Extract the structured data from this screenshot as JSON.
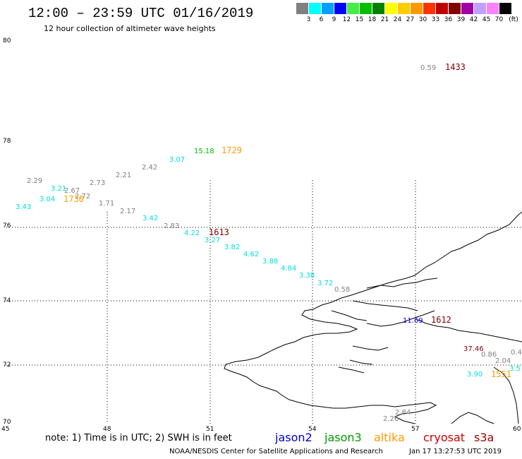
{
  "header": {
    "title": "12:00 – 23:59 UTC 01/16/2019",
    "subtitle": "12 hour collection of altimeter wave heights"
  },
  "legend": {
    "unit_label": "(ft)",
    "bins": [
      {
        "label": "3",
        "color": "#808080"
      },
      {
        "label": "6",
        "color": "#00ffff"
      },
      {
        "label": "9",
        "color": "#00a0ff"
      },
      {
        "label": "12",
        "color": "#0000ff"
      },
      {
        "label": "15",
        "color": "#44ee44"
      },
      {
        "label": "18",
        "color": "#00c000"
      },
      {
        "label": "21",
        "color": "#008000"
      },
      {
        "label": "24",
        "color": "#ffff00"
      },
      {
        "label": "27",
        "color": "#ffcc00"
      },
      {
        "label": "30",
        "color": "#ff9900"
      },
      {
        "label": "33",
        "color": "#ff3300"
      },
      {
        "label": "36",
        "color": "#c00000"
      },
      {
        "label": "39",
        "color": "#800000"
      },
      {
        "label": "42",
        "color": "#a000a0"
      },
      {
        "label": "45",
        "color": "#c0a0ff"
      },
      {
        "label": "70",
        "color": "#ff80ff"
      },
      {
        "label": "",
        "color": "#000000"
      }
    ]
  },
  "axes": {
    "y_ticks": [
      "80",
      "78",
      "76",
      "74",
      "72",
      "70"
    ],
    "x_ticks": [
      "45",
      "48",
      "51",
      "54",
      "57",
      "60"
    ]
  },
  "observations": [
    {
      "text": "0.59",
      "color": "#808080"
    },
    {
      "text": "1433",
      "color": "#800000"
    },
    {
      "text": "15.18",
      "color": "#00c000"
    },
    {
      "text": "1729",
      "color": "#ff9900"
    },
    {
      "text": "3.07",
      "color": "#00dddd"
    },
    {
      "text": "2.42",
      "color": "#808080"
    },
    {
      "text": "2.21",
      "color": "#808080"
    },
    {
      "text": "2.73",
      "color": "#808080"
    },
    {
      "text": "2.29",
      "color": "#808080"
    },
    {
      "text": "3.21",
      "color": "#00dddd"
    },
    {
      "text": "2.67",
      "color": "#808080"
    },
    {
      "text": "2.72",
      "color": "#808080"
    },
    {
      "text": "3.04",
      "color": "#00dddd"
    },
    {
      "text": "1730",
      "color": "#ff9900"
    },
    {
      "text": "1.71",
      "color": "#808080"
    },
    {
      "text": "3.43",
      "color": "#00dddd"
    },
    {
      "text": "2.17",
      "color": "#808080"
    },
    {
      "text": "3.42",
      "color": "#00dddd"
    },
    {
      "text": "2.83",
      "color": "#808080"
    },
    {
      "text": "4.22",
      "color": "#00dddd"
    },
    {
      "text": "1613",
      "color": "#800000"
    },
    {
      "text": "3.27",
      "color": "#00dddd"
    },
    {
      "text": "3.82",
      "color": "#00dddd"
    },
    {
      "text": "4.62",
      "color": "#00dddd"
    },
    {
      "text": "3.88",
      "color": "#00dddd"
    },
    {
      "text": "4.84",
      "color": "#00dddd"
    },
    {
      "text": "3.38",
      "color": "#00dddd"
    },
    {
      "text": "3.72",
      "color": "#00dddd"
    },
    {
      "text": "0.58",
      "color": "#808080"
    },
    {
      "text": "11.69",
      "color": "#0000ff"
    },
    {
      "text": "1612",
      "color": "#800000"
    },
    {
      "text": "37.46",
      "color": "#800000"
    },
    {
      "text": "0.86",
      "color": "#808080"
    },
    {
      "text": "0.4",
      "color": "#808080"
    },
    {
      "text": "2.04",
      "color": "#808080"
    },
    {
      "text": "3.90",
      "color": "#00dddd"
    },
    {
      "text": "1551",
      "color": "#ff9900"
    },
    {
      "text": "3.5",
      "color": "#00dddd"
    },
    {
      "text": "2.84",
      "color": "#808080"
    },
    {
      "text": "2.26",
      "color": "#808080"
    }
  ],
  "footer": {
    "note": "note:  1) Time is in UTC;  2) SWH is in feet",
    "satellites": [
      {
        "name": "jason2",
        "color": "#0000cc"
      },
      {
        "name": "jason3",
        "color": "#009900"
      },
      {
        "name": "altika",
        "color": "#ff9900"
      },
      {
        "name": "cryosat",
        "color": "#cc0000"
      },
      {
        "name": "s3a",
        "color": "#990000"
      }
    ],
    "credit": "NOAA/NESDIS Center for Satellite Applications and Research",
    "timestamp": "Jan 17 13:27:53 UTC 2019"
  }
}
